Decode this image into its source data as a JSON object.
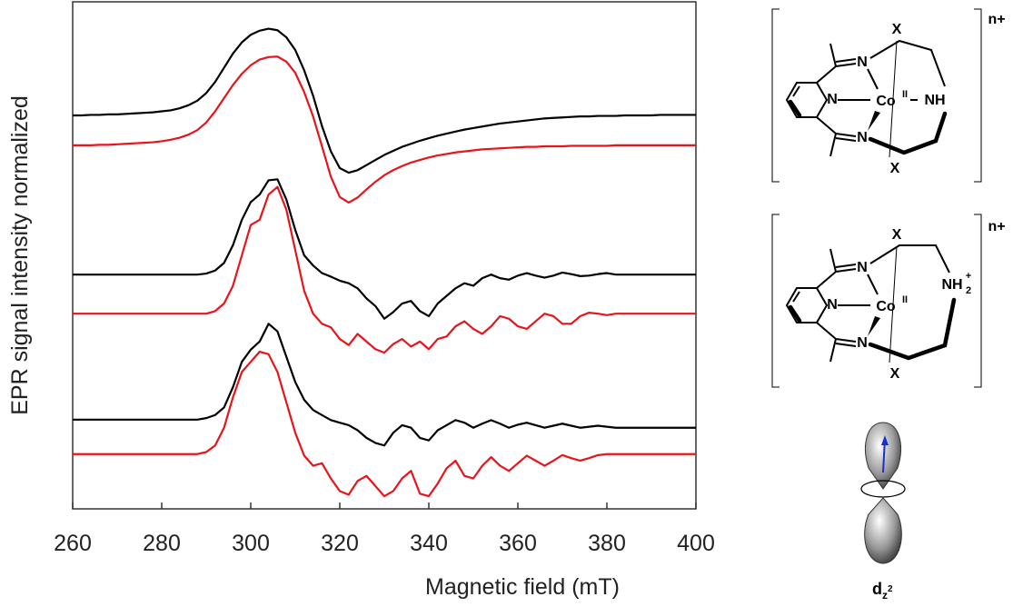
{
  "chart_data": {
    "type": "line",
    "x_label": "Magnetic field (mT)",
    "y_label": "EPR signal intensity normalized",
    "x": [
      260,
      262,
      264,
      266,
      268,
      270,
      272,
      274,
      276,
      278,
      280,
      282,
      284,
      286,
      288,
      290,
      292,
      294,
      296,
      298,
      300,
      302,
      304,
      306,
      308,
      310,
      312,
      314,
      316,
      318,
      320,
      322,
      324,
      326,
      328,
      330,
      332,
      334,
      336,
      338,
      340,
      342,
      344,
      346,
      348,
      350,
      352,
      354,
      356,
      358,
      360,
      362,
      364,
      366,
      368,
      370,
      372,
      374,
      376,
      378,
      380,
      382,
      384,
      386,
      388,
      390,
      392,
      394,
      396,
      398,
      400
    ],
    "xlim": [
      260,
      400
    ],
    "xticks": [
      260,
      280,
      300,
      320,
      340,
      360,
      380,
      400
    ],
    "ylim": [
      0,
      100
    ],
    "series": [
      {
        "color": "#000000",
        "values": [
          77.6,
          77.6,
          77.7,
          77.7,
          77.8,
          77.8,
          77.9,
          78,
          78.1,
          78.2,
          78.4,
          78.6,
          79,
          79.6,
          80.5,
          82,
          84.2,
          87,
          89.8,
          92,
          93.5,
          94.3,
          94.7,
          94.4,
          93,
          90.5,
          86.5,
          81.5,
          75.5,
          70.5,
          67.2,
          66.3,
          66.8,
          67.8,
          68.8,
          69.8,
          70.6,
          71.4,
          72,
          72.6,
          73.1,
          73.6,
          74,
          74.4,
          74.8,
          75.1,
          75.4,
          75.7,
          76,
          76.2,
          76.4,
          76.6,
          76.8,
          77,
          77.1,
          77.2,
          77.3,
          77.4,
          77.4,
          77.5,
          77.5,
          77.5,
          77.6,
          77.6,
          77.6,
          77.6,
          77.7,
          77.7,
          77.7,
          77.7,
          77.7
        ]
      },
      {
        "color": "#e8141b",
        "values": [
          71.7,
          71.7,
          71.7,
          71.8,
          71.8,
          71.9,
          72,
          72.1,
          72.2,
          72.3,
          72.5,
          72.8,
          73.2,
          73.8,
          74.7,
          76.2,
          78.4,
          81,
          83.6,
          85.8,
          87.5,
          88.6,
          89.1,
          89.2,
          88.2,
          86,
          82.2,
          77.4,
          71.5,
          65.5,
          61.5,
          60.4,
          61.4,
          63,
          64.5,
          65.8,
          66.8,
          67.6,
          68.3,
          68.8,
          69.3,
          69.7,
          70,
          70.3,
          70.5,
          70.7,
          70.9,
          71,
          71.1,
          71.2,
          71.3,
          71.4,
          71.4,
          71.5,
          71.5,
          71.5,
          71.6,
          71.6,
          71.6,
          71.6,
          71.6,
          71.7,
          71.7,
          71.7,
          71.7,
          71.7,
          71.7,
          71.7,
          71.7,
          71.7,
          71.7
        ]
      },
      {
        "color": "#000000",
        "values": [
          46.2,
          46.2,
          46.2,
          46.2,
          46.2,
          46.2,
          46.2,
          46.2,
          46.2,
          46.2,
          46.2,
          46.2,
          46.2,
          46.2,
          46.2,
          46.4,
          47,
          48.5,
          52,
          57,
          60.5,
          62,
          64.8,
          65,
          61,
          55,
          50,
          48,
          46.5,
          45.8,
          45,
          44.5,
          43.5,
          41.5,
          40,
          37.5,
          38.8,
          40.5,
          41,
          39,
          38,
          40.5,
          42,
          43.5,
          44.5,
          44,
          45.5,
          46.2,
          45.5,
          45.2,
          46,
          46.5,
          46,
          45.6,
          46,
          46.6,
          46.3,
          45.9,
          46,
          46.3,
          46.5,
          46.2,
          46.2,
          46.2,
          46.2,
          46.2,
          46.2,
          46.2,
          46.2,
          46.2,
          46.2
        ]
      },
      {
        "color": "#e8141b",
        "values": [
          38.5,
          38.5,
          38.5,
          38.5,
          38.5,
          38.5,
          38.5,
          38.5,
          38.5,
          38.5,
          38.5,
          38.5,
          38.5,
          38.5,
          38.5,
          38.5,
          39,
          40.5,
          44,
          50,
          56,
          57,
          62,
          63.5,
          59,
          51,
          43,
          38.5,
          36.5,
          35.8,
          33.5,
          32.3,
          34.5,
          33,
          31.5,
          30.8,
          32.5,
          33.5,
          32,
          33,
          31.5,
          33.5,
          34,
          36,
          37,
          35.5,
          34.5,
          36,
          38,
          37.5,
          36,
          35.5,
          37,
          38.5,
          38,
          36.5,
          36.5,
          38,
          38.7,
          38.5,
          38.2,
          38.5,
          38.5,
          38.5,
          38.5,
          38.5,
          38.5,
          38.5,
          38.5,
          38.5,
          38.5
        ]
      },
      {
        "color": "#000000",
        "values": [
          17.6,
          17.6,
          17.6,
          17.6,
          17.6,
          17.6,
          17.6,
          17.6,
          17.6,
          17.6,
          17.6,
          17.6,
          17.6,
          17.6,
          17.6,
          17.9,
          18.5,
          20,
          24,
          29,
          31.4,
          33,
          36.5,
          35,
          30,
          25,
          21.5,
          19.5,
          18.5,
          17.5,
          17,
          16.5,
          15.5,
          14,
          13,
          12.5,
          15,
          16.5,
          16,
          14,
          13.5,
          15.5,
          16.5,
          17.5,
          17,
          16,
          16.8,
          17.5,
          16.8,
          16,
          16.6,
          17,
          16.5,
          16,
          16.4,
          16.8,
          16.4,
          16,
          16.2,
          16.4,
          16.2,
          16,
          16,
          16,
          16,
          16,
          16,
          16,
          16,
          16,
          16
        ]
      },
      {
        "color": "#e8141b",
        "values": [
          10.8,
          10.8,
          10.8,
          10.8,
          10.8,
          10.8,
          10.8,
          10.8,
          10.8,
          10.8,
          10.8,
          10.8,
          10.8,
          10.8,
          10.8,
          11.2,
          12.5,
          16,
          22,
          27,
          29,
          31,
          30.5,
          27,
          21,
          15,
          10.5,
          8.5,
          9,
          6,
          3.5,
          2.8,
          5.5,
          6.5,
          4.5,
          2.5,
          3.5,
          6,
          7.5,
          3,
          2.5,
          5,
          8,
          9.5,
          6.5,
          6,
          8.5,
          10.2,
          8.5,
          7.5,
          9,
          10.5,
          9.5,
          8.5,
          9.5,
          10.6,
          10,
          9.5,
          10,
          10.6,
          10.8,
          10.8,
          10.8,
          10.8,
          10.8,
          10.8,
          10.8,
          10.8,
          10.8,
          10.8,
          10.8
        ]
      }
    ]
  },
  "structures": [
    {
      "charge": "n+",
      "axial_top": "X",
      "imine_top": "N",
      "pyridine": "N",
      "metal": "Co",
      "oxidation": "II",
      "amine": "NH",
      "imine_bottom": "N",
      "axial_bottom": "X"
    },
    {
      "charge": "n+",
      "axial_top": "X",
      "imine_top": "N",
      "pyridine": "N",
      "metal": "Co",
      "oxidation": "II",
      "amine": "NH",
      "amine_sub": "2",
      "amine_sup": "+",
      "imine_bottom": "N",
      "axial_bottom": "X"
    }
  ],
  "orbital": {
    "label": "d",
    "sub": "z",
    "sup": "2"
  }
}
